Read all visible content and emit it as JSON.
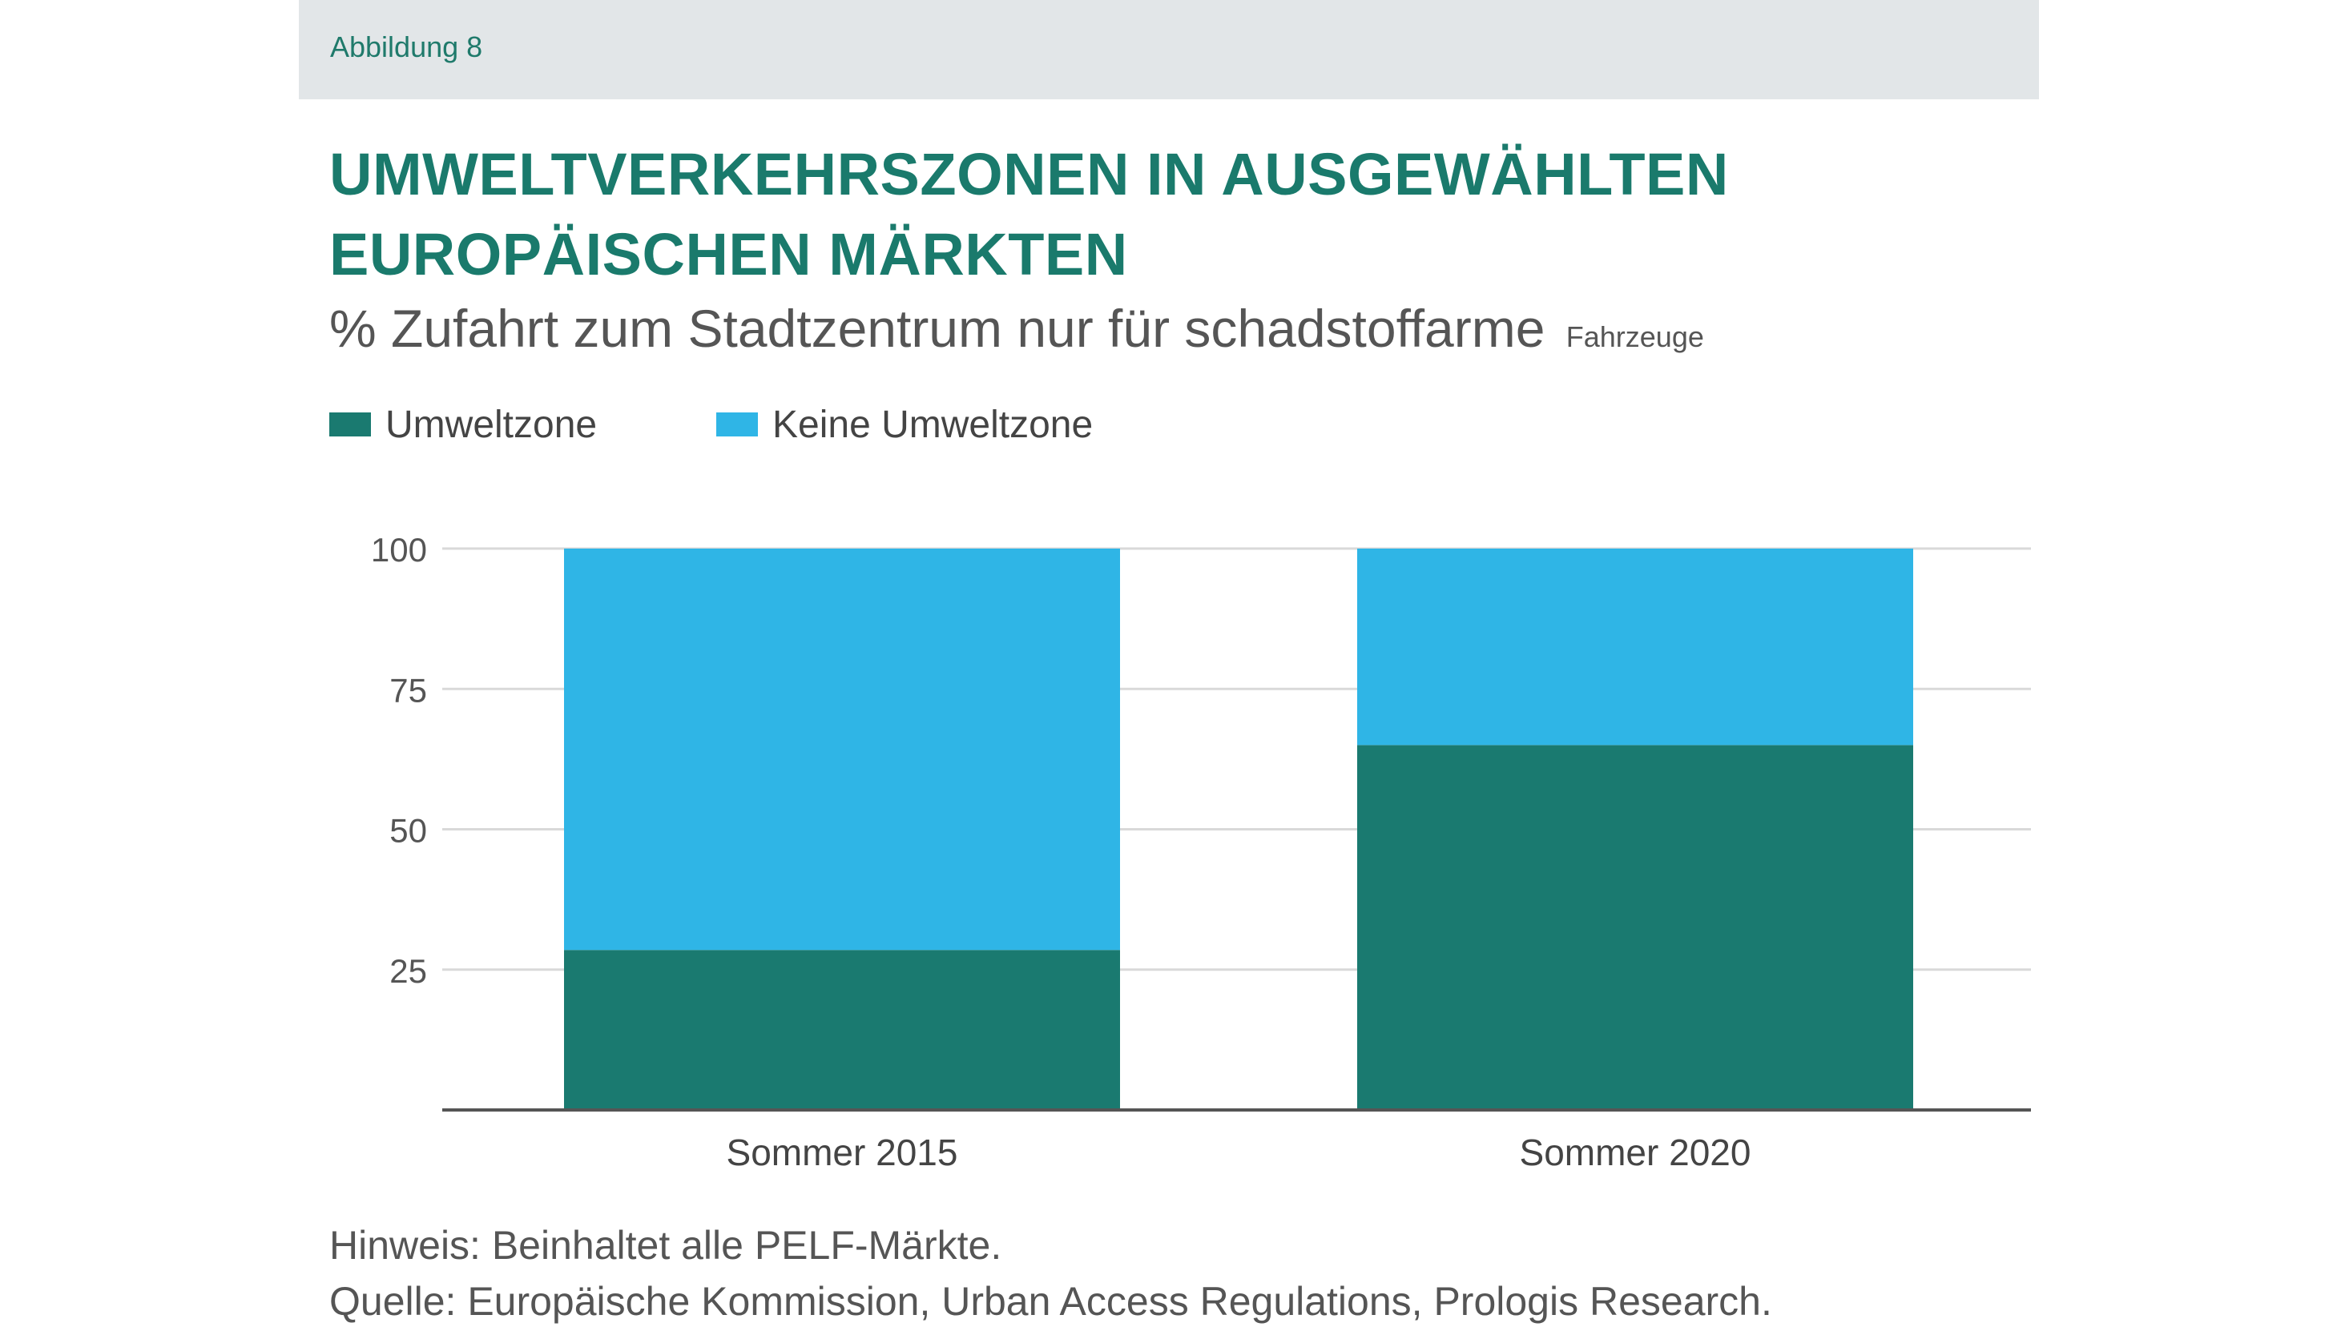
{
  "header": {
    "figure_label": "Abbildung 8"
  },
  "title": {
    "line1": "UMWELTVERKEHRSZONEN IN AUSGEWÄHLTEN",
    "line2": "EUROPÄISCHEN MÄRKTEN"
  },
  "subtitle": {
    "main": "% Zufahrt zum Stadtzentrum nur für schadstoffarme",
    "small": "Fahrzeuge"
  },
  "colors": {
    "umweltzone": "#1a7a70",
    "keine_umweltzone": "#2fb5e6",
    "grid": "#d9d9d9",
    "axis": "#555555",
    "tick_text": "#555555"
  },
  "chart_data": {
    "type": "bar",
    "stacked": true,
    "categories": [
      "Sommer 2015",
      "Sommer 2020"
    ],
    "series": [
      {
        "name": "Umweltzone",
        "values": [
          28.5,
          65
        ]
      },
      {
        "name": "Keine Umweltzone",
        "values": [
          71.5,
          35
        ]
      }
    ],
    "yticks": [
      25,
      50,
      75,
      100
    ],
    "ylim": [
      0,
      100
    ],
    "grid": true,
    "legend_position": "top-left"
  },
  "notes": {
    "hint": "Hinweis: Beinhaltet alle PELF-Märkte.",
    "source": "Quelle: Europäische Kommission, Urban Access Regulations, Prologis Research."
  }
}
